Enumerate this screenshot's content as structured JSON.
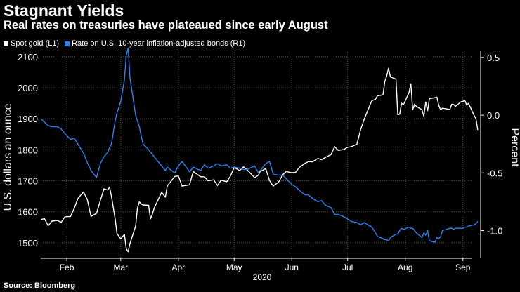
{
  "header": {
    "title": "Stagnant Yields",
    "subtitle": "Real rates on treasuries have plateaued since early August"
  },
  "source": {
    "label": "Source:",
    "value": "Bloomberg"
  },
  "colors": {
    "background": "#000000",
    "text": "#ffffff",
    "gold_series": "#ffffff",
    "real_rate_series": "#2f80ed",
    "grid": "#555555"
  },
  "chart_data": {
    "type": "line",
    "title": "Stagnant Yields",
    "subtitle": "Real rates on treasuries have plateaued since early August",
    "x_type": "date",
    "x_range": [
      "2020-02-01",
      "2020-09-20"
    ],
    "x_ticks": [
      {
        "date": "2020-02-15",
        "label": "Feb"
      },
      {
        "date": "2020-03-15",
        "label": "Mar"
      },
      {
        "date": "2020-04-15",
        "label": "Apr"
      },
      {
        "date": "2020-05-15",
        "label": "May"
      },
      {
        "date": "2020-06-15",
        "label": "Jun"
      },
      {
        "date": "2020-07-15",
        "label": "Jul"
      },
      {
        "date": "2020-08-15",
        "label": "Aug"
      },
      {
        "date": "2020-09-15",
        "label": "Sep"
      }
    ],
    "x_year_label": "2020",
    "left_axis": {
      "label": "U.S. dollars an ounce",
      "min": 1450,
      "max": 2120,
      "ticks": [
        1500,
        1600,
        1700,
        1800,
        1900,
        2000,
        2100
      ]
    },
    "right_axis": {
      "label": "Percent",
      "min": -1.24,
      "max": 0.56,
      "ticks": [
        -1.0,
        -0.5,
        0.0,
        0.5
      ],
      "tick_labels": [
        "-1.0",
        "-0.5",
        "0.0",
        "0.5"
      ]
    },
    "grid": true,
    "legend_position": "top-left",
    "series": [
      {
        "name": "Spot gold (L1)",
        "axis": "left",
        "color": "#ffffff",
        "points": [
          [
            "2020-02-01",
            1575
          ],
          [
            "2020-02-03",
            1578
          ],
          [
            "2020-02-05",
            1555
          ],
          [
            "2020-02-07",
            1570
          ],
          [
            "2020-02-10",
            1572
          ],
          [
            "2020-02-12",
            1566
          ],
          [
            "2020-02-14",
            1584
          ],
          [
            "2020-02-17",
            1585
          ],
          [
            "2020-02-19",
            1611
          ],
          [
            "2020-02-21",
            1643
          ],
          [
            "2020-02-24",
            1664
          ],
          [
            "2020-02-26",
            1640
          ],
          [
            "2020-02-28",
            1585
          ],
          [
            "2020-03-02",
            1595
          ],
          [
            "2020-03-04",
            1636
          ],
          [
            "2020-03-06",
            1674
          ],
          [
            "2020-03-08",
            1670
          ],
          [
            "2020-03-09",
            1680
          ],
          [
            "2020-03-10",
            1650
          ],
          [
            "2020-03-12",
            1577
          ],
          [
            "2020-03-13",
            1530
          ],
          [
            "2020-03-15",
            1513
          ],
          [
            "2020-03-17",
            1527
          ],
          [
            "2020-03-18",
            1480
          ],
          [
            "2020-03-19",
            1471
          ],
          [
            "2020-03-20",
            1498
          ],
          [
            "2020-03-23",
            1554
          ],
          [
            "2020-03-24",
            1612
          ],
          [
            "2020-03-25",
            1632
          ],
          [
            "2020-03-26",
            1625
          ],
          [
            "2020-03-27",
            1622
          ],
          [
            "2020-03-30",
            1621
          ],
          [
            "2020-03-31",
            1577
          ],
          [
            "2020-04-01",
            1592
          ],
          [
            "2020-04-02",
            1612
          ],
          [
            "2020-04-06",
            1663
          ],
          [
            "2020-04-08",
            1647
          ],
          [
            "2020-04-09",
            1683
          ],
          [
            "2020-04-13",
            1714
          ],
          [
            "2020-04-15",
            1716
          ],
          [
            "2020-04-17",
            1683
          ],
          [
            "2020-04-21",
            1687
          ],
          [
            "2020-04-23",
            1730
          ],
          [
            "2020-04-27",
            1713
          ],
          [
            "2020-04-29",
            1713
          ],
          [
            "2020-05-01",
            1700
          ],
          [
            "2020-05-04",
            1703
          ],
          [
            "2020-05-06",
            1685
          ],
          [
            "2020-05-08",
            1702
          ],
          [
            "2020-05-11",
            1697
          ],
          [
            "2020-05-13",
            1715
          ],
          [
            "2020-05-15",
            1743
          ],
          [
            "2020-05-18",
            1733
          ],
          [
            "2020-05-20",
            1745
          ],
          [
            "2020-05-22",
            1735
          ],
          [
            "2020-05-26",
            1710
          ],
          [
            "2020-05-28",
            1718
          ],
          [
            "2020-05-29",
            1730
          ],
          [
            "2020-06-01",
            1739
          ],
          [
            "2020-06-03",
            1701
          ],
          [
            "2020-06-05",
            1683
          ],
          [
            "2020-06-08",
            1697
          ],
          [
            "2020-06-10",
            1719
          ],
          [
            "2020-06-12",
            1730
          ],
          [
            "2020-06-15",
            1726
          ],
          [
            "2020-06-17",
            1727
          ],
          [
            "2020-06-19",
            1743
          ],
          [
            "2020-06-22",
            1756
          ],
          [
            "2020-06-24",
            1762
          ],
          [
            "2020-06-26",
            1761
          ],
          [
            "2020-06-29",
            1772
          ],
          [
            "2020-07-01",
            1768
          ],
          [
            "2020-07-03",
            1775
          ],
          [
            "2020-07-06",
            1784
          ],
          [
            "2020-07-08",
            1810
          ],
          [
            "2020-07-10",
            1798
          ],
          [
            "2020-07-13",
            1801
          ],
          [
            "2020-07-15",
            1808
          ],
          [
            "2020-07-17",
            1810
          ],
          [
            "2020-07-20",
            1818
          ],
          [
            "2020-07-22",
            1865
          ],
          [
            "2020-07-24",
            1900
          ],
          [
            "2020-07-27",
            1944
          ],
          [
            "2020-07-28",
            1958
          ],
          [
            "2020-07-30",
            1963
          ],
          [
            "2020-07-31",
            1974
          ],
          [
            "2020-08-03",
            1977
          ],
          [
            "2020-08-04",
            2020
          ],
          [
            "2020-08-05",
            2038
          ],
          [
            "2020-08-06",
            2063
          ],
          [
            "2020-08-07",
            2035
          ],
          [
            "2020-08-10",
            2028
          ],
          [
            "2020-08-11",
            1913
          ],
          [
            "2020-08-12",
            1915
          ],
          [
            "2020-08-13",
            1950
          ],
          [
            "2020-08-14",
            1945
          ],
          [
            "2020-08-17",
            1984
          ],
          [
            "2020-08-18",
            2013
          ],
          [
            "2020-08-19",
            1929
          ],
          [
            "2020-08-20",
            1947
          ],
          [
            "2020-08-21",
            1940
          ],
          [
            "2020-08-24",
            1929
          ],
          [
            "2020-08-25",
            1908
          ],
          [
            "2020-08-26",
            1954
          ],
          [
            "2020-08-27",
            1926
          ],
          [
            "2020-08-28",
            1965
          ],
          [
            "2020-08-31",
            1968
          ],
          [
            "2020-09-01",
            1970
          ],
          [
            "2020-09-02",
            1943
          ],
          [
            "2020-09-03",
            1929
          ],
          [
            "2020-09-04",
            1934
          ],
          [
            "2020-09-08",
            1930
          ],
          [
            "2020-09-09",
            1947
          ],
          [
            "2020-09-10",
            1946
          ],
          [
            "2020-09-11",
            1940
          ],
          [
            "2020-09-14",
            1955
          ],
          [
            "2020-09-15",
            1956
          ],
          [
            "2020-09-16",
            1960
          ],
          [
            "2020-09-17",
            1944
          ],
          [
            "2020-09-18",
            1950
          ],
          [
            "2020-09-21",
            1911
          ],
          [
            "2020-09-22",
            1900
          ],
          [
            "2020-09-23",
            1864
          ]
        ]
      },
      {
        "name": "Rate on U.S. 10-year inflation-adjusted bonds (R1)",
        "axis": "right",
        "color": "#2f80ed",
        "points": [
          [
            "2020-02-01",
            -0.03
          ],
          [
            "2020-02-03",
            -0.06
          ],
          [
            "2020-02-05",
            -0.09
          ],
          [
            "2020-02-07",
            -0.1
          ],
          [
            "2020-02-10",
            -0.1
          ],
          [
            "2020-02-12",
            -0.12
          ],
          [
            "2020-02-14",
            -0.16
          ],
          [
            "2020-02-17",
            -0.21
          ],
          [
            "2020-02-19",
            -0.2
          ],
          [
            "2020-02-21",
            -0.25
          ],
          [
            "2020-02-24",
            -0.33
          ],
          [
            "2020-02-26",
            -0.41
          ],
          [
            "2020-02-28",
            -0.48
          ],
          [
            "2020-03-02",
            -0.54
          ],
          [
            "2020-03-04",
            -0.42
          ],
          [
            "2020-03-06",
            -0.36
          ],
          [
            "2020-03-08",
            -0.32
          ],
          [
            "2020-03-09",
            -0.28
          ],
          [
            "2020-03-10",
            -0.25
          ],
          [
            "2020-03-12",
            -0.05
          ],
          [
            "2020-03-13",
            0.02
          ],
          [
            "2020-03-15",
            0.12
          ],
          [
            "2020-03-17",
            0.31
          ],
          [
            "2020-03-18",
            0.52
          ],
          [
            "2020-03-19",
            0.58
          ],
          [
            "2020-03-20",
            0.32
          ],
          [
            "2020-03-23",
            0.0
          ],
          [
            "2020-03-24",
            -0.05
          ],
          [
            "2020-03-25",
            -0.1
          ],
          [
            "2020-03-26",
            -0.18
          ],
          [
            "2020-03-27",
            -0.25
          ],
          [
            "2020-03-30",
            -0.3
          ],
          [
            "2020-03-31",
            -0.32
          ],
          [
            "2020-04-01",
            -0.34
          ],
          [
            "2020-04-02",
            -0.36
          ],
          [
            "2020-04-06",
            -0.44
          ],
          [
            "2020-04-08",
            -0.48
          ],
          [
            "2020-04-09",
            -0.45
          ],
          [
            "2020-04-13",
            -0.5
          ],
          [
            "2020-04-15",
            -0.44
          ],
          [
            "2020-04-17",
            -0.4
          ],
          [
            "2020-04-21",
            -0.49
          ],
          [
            "2020-04-23",
            -0.45
          ],
          [
            "2020-04-27",
            -0.48
          ],
          [
            "2020-04-29",
            -0.43
          ],
          [
            "2020-05-01",
            -0.46
          ],
          [
            "2020-05-04",
            -0.44
          ],
          [
            "2020-05-06",
            -0.42
          ],
          [
            "2020-05-08",
            -0.44
          ],
          [
            "2020-05-11",
            -0.43
          ],
          [
            "2020-05-13",
            -0.46
          ],
          [
            "2020-05-15",
            -0.45
          ],
          [
            "2020-05-18",
            -0.46
          ],
          [
            "2020-05-20",
            -0.47
          ],
          [
            "2020-05-22",
            -0.47
          ],
          [
            "2020-05-26",
            -0.44
          ],
          [
            "2020-05-28",
            -0.5
          ],
          [
            "2020-05-29",
            -0.48
          ],
          [
            "2020-06-01",
            -0.42
          ],
          [
            "2020-06-03",
            -0.4
          ],
          [
            "2020-06-05",
            -0.51
          ],
          [
            "2020-06-08",
            -0.52
          ],
          [
            "2020-06-10",
            -0.52
          ],
          [
            "2020-06-12",
            -0.55
          ],
          [
            "2020-06-15",
            -0.6
          ],
          [
            "2020-06-17",
            -0.62
          ],
          [
            "2020-06-19",
            -0.65
          ],
          [
            "2020-06-22",
            -0.69
          ],
          [
            "2020-06-24",
            -0.69
          ],
          [
            "2020-06-26",
            -0.72
          ],
          [
            "2020-06-29",
            -0.75
          ],
          [
            "2020-07-01",
            -0.74
          ],
          [
            "2020-07-03",
            -0.78
          ],
          [
            "2020-07-06",
            -0.8
          ],
          [
            "2020-07-08",
            -0.86
          ],
          [
            "2020-07-10",
            -0.86
          ],
          [
            "2020-07-13",
            -0.88
          ],
          [
            "2020-07-15",
            -0.9
          ],
          [
            "2020-07-17",
            -0.92
          ],
          [
            "2020-07-20",
            -0.93
          ],
          [
            "2020-07-22",
            -0.95
          ],
          [
            "2020-07-24",
            -0.93
          ],
          [
            "2020-07-27",
            -0.96
          ],
          [
            "2020-07-28",
            -0.97
          ],
          [
            "2020-07-30",
            -1.02
          ],
          [
            "2020-07-31",
            -1.05
          ],
          [
            "2020-08-03",
            -1.07
          ],
          [
            "2020-08-04",
            -1.08
          ],
          [
            "2020-08-05",
            -1.08
          ],
          [
            "2020-08-06",
            -1.09
          ],
          [
            "2020-08-07",
            -1.06
          ],
          [
            "2020-08-10",
            -1.03
          ],
          [
            "2020-08-11",
            -1.03
          ],
          [
            "2020-08-12",
            -1.0
          ],
          [
            "2020-08-13",
            -0.98
          ],
          [
            "2020-08-14",
            -0.99
          ],
          [
            "2020-08-17",
            -0.97
          ],
          [
            "2020-08-18",
            -0.98
          ],
          [
            "2020-08-19",
            -0.98
          ],
          [
            "2020-08-20",
            -1.0
          ],
          [
            "2020-08-21",
            -1.02
          ],
          [
            "2020-08-24",
            -1.06
          ],
          [
            "2020-08-25",
            -1.02
          ],
          [
            "2020-08-26",
            -1.04
          ],
          [
            "2020-08-27",
            -1.0
          ],
          [
            "2020-08-28",
            -1.09
          ],
          [
            "2020-08-31",
            -1.1
          ],
          [
            "2020-09-01",
            -1.06
          ],
          [
            "2020-09-02",
            -1.07
          ],
          [
            "2020-09-03",
            -1.05
          ],
          [
            "2020-09-04",
            -1.0
          ],
          [
            "2020-09-08",
            -0.98
          ],
          [
            "2020-09-09",
            -0.98
          ],
          [
            "2020-09-10",
            -0.99
          ],
          [
            "2020-09-11",
            -0.98
          ],
          [
            "2020-09-14",
            -0.98
          ],
          [
            "2020-09-15",
            -0.98
          ],
          [
            "2020-09-16",
            -0.97
          ],
          [
            "2020-09-17",
            -0.97
          ],
          [
            "2020-09-18",
            -0.96
          ],
          [
            "2020-09-21",
            -0.95
          ],
          [
            "2020-09-22",
            -0.94
          ],
          [
            "2020-09-23",
            -0.92
          ]
        ]
      }
    ]
  }
}
